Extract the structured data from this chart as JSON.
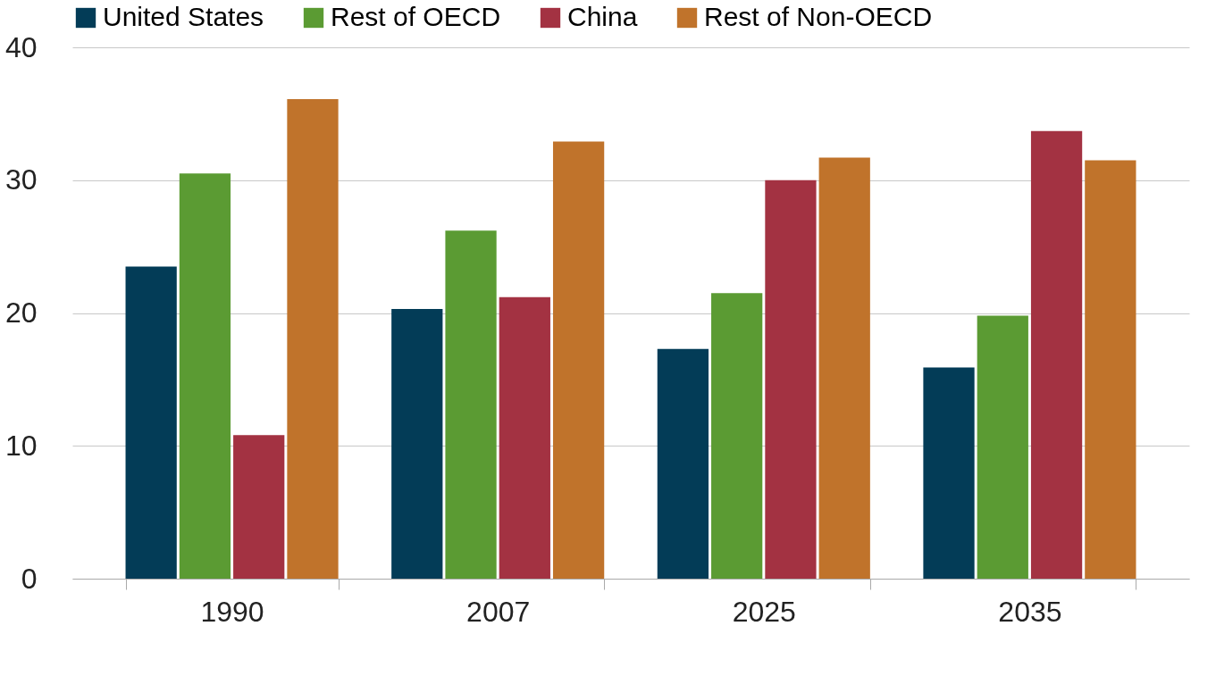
{
  "chart_data": {
    "type": "bar",
    "categories": [
      "1990",
      "2007",
      "2025",
      "2035"
    ],
    "series": [
      {
        "name": "United States",
        "color": "#033c57",
        "values": [
          23.5,
          20.3,
          17.3,
          15.9
        ]
      },
      {
        "name": "Rest of OECD",
        "color": "#5b9b33",
        "values": [
          30.5,
          26.2,
          21.5,
          19.8
        ]
      },
      {
        "name": "China",
        "color": "#a33242",
        "values": [
          10.8,
          21.2,
          30.0,
          33.7
        ]
      },
      {
        "name": "Rest of Non-OECD",
        "color": "#c0732b",
        "values": [
          36.1,
          32.9,
          31.7,
          31.5
        ]
      }
    ],
    "ylim": [
      0,
      40
    ],
    "yticks": [
      0,
      10,
      20,
      30,
      40
    ],
    "grid": "y",
    "legend": "top"
  }
}
